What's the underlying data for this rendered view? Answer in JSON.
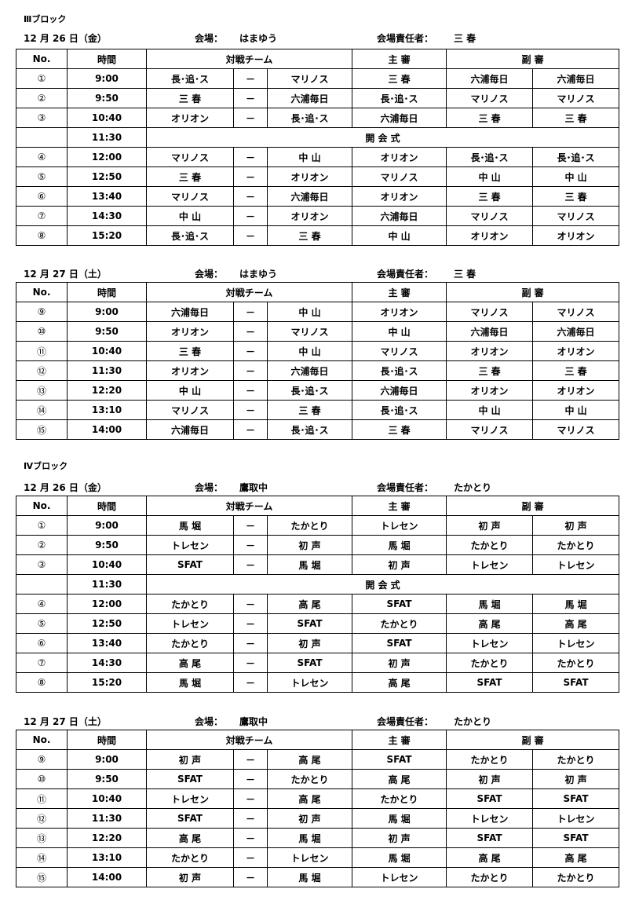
{
  "headers": {
    "no": "No.",
    "time": "時間",
    "teams": "対戦チーム",
    "main_ref": "主 審",
    "sub_ref": "副 審",
    "dash": "－"
  },
  "sections": [
    {
      "block": "Ⅲブロック",
      "date": "12 月 26 日（金）",
      "venue_label": "会場：",
      "venue": "はまゆう",
      "manager_label": "会場責任者：",
      "manager": "三 春",
      "rows": [
        [
          "①",
          "9:00",
          "長･追･ス",
          "マリノス",
          "三 春",
          "六浦毎日",
          "六浦毎日"
        ],
        [
          "②",
          "9:50",
          "三 春",
          "六浦毎日",
          "長･追･ス",
          "マリノス",
          "マリノス"
        ],
        [
          "③",
          "10:40",
          "オリオン",
          "長･追･ス",
          "六浦毎日",
          "三 春",
          "三 春"
        ],
        [
          "",
          "11:30",
          "開 会 式"
        ],
        [
          "④",
          "12:00",
          "マリノス",
          "中 山",
          "オリオン",
          "長･追･ス",
          "長･追･ス"
        ],
        [
          "⑤",
          "12:50",
          "三 春",
          "オリオン",
          "マリノス",
          "中 山",
          "中 山"
        ],
        [
          "⑥",
          "13:40",
          "マリノス",
          "六浦毎日",
          "オリオン",
          "三 春",
          "三 春"
        ],
        [
          "⑦",
          "14:30",
          "中 山",
          "オリオン",
          "六浦毎日",
          "マリノス",
          "マリノス"
        ],
        [
          "⑧",
          "15:20",
          "長･追･ス",
          "三 春",
          "中 山",
          "オリオン",
          "オリオン"
        ]
      ]
    },
    {
      "block": "",
      "date": "12 月 27 日（土）",
      "venue_label": "会場：",
      "venue": "はまゆう",
      "manager_label": "会場責任者：",
      "manager": "三 春",
      "rows": [
        [
          "⑨",
          "9:00",
          "六浦毎日",
          "中 山",
          "オリオン",
          "マリノス",
          "マリノス"
        ],
        [
          "⑩",
          "9:50",
          "オリオン",
          "マリノス",
          "中 山",
          "六浦毎日",
          "六浦毎日"
        ],
        [
          "⑪",
          "10:40",
          "三 春",
          "中 山",
          "マリノス",
          "オリオン",
          "オリオン"
        ],
        [
          "⑫",
          "11:30",
          "オリオン",
          "六浦毎日",
          "長･追･ス",
          "三 春",
          "三 春"
        ],
        [
          "⑬",
          "12:20",
          "中 山",
          "長･追･ス",
          "六浦毎日",
          "オリオン",
          "オリオン"
        ],
        [
          "⑭",
          "13:10",
          "マリノス",
          "三 春",
          "長･追･ス",
          "中 山",
          "中 山"
        ],
        [
          "⑮",
          "14:00",
          "六浦毎日",
          "長･追･ス",
          "三 春",
          "マリノス",
          "マリノス"
        ]
      ]
    },
    {
      "block": "Ⅳブロック",
      "date": "12 月 26 日（金）",
      "venue_label": "会場：",
      "venue": "鷹取中",
      "manager_label": "会場責任者：",
      "manager": "たかとり",
      "rows": [
        [
          "①",
          "9:00",
          "馬 堀",
          "たかとり",
          "トレセン",
          "初 声",
          "初 声"
        ],
        [
          "②",
          "9:50",
          "トレセン",
          "初 声",
          "馬 堀",
          "たかとり",
          "たかとり"
        ],
        [
          "③",
          "10:40",
          "SFAT",
          "馬 堀",
          "初 声",
          "トレセン",
          "トレセン"
        ],
        [
          "",
          "11:30",
          "開 会 式"
        ],
        [
          "④",
          "12:00",
          "たかとり",
          "高 尾",
          "SFAT",
          "馬 堀",
          "馬 堀"
        ],
        [
          "⑤",
          "12:50",
          "トレセン",
          "SFAT",
          "たかとり",
          "高 尾",
          "高 尾"
        ],
        [
          "⑥",
          "13:40",
          "たかとり",
          "初 声",
          "SFAT",
          "トレセン",
          "トレセン"
        ],
        [
          "⑦",
          "14:30",
          "高 尾",
          "SFAT",
          "初 声",
          "たかとり",
          "たかとり"
        ],
        [
          "⑧",
          "15:20",
          "馬 堀",
          "トレセン",
          "高 尾",
          "SFAT",
          "SFAT"
        ]
      ]
    },
    {
      "block": "",
      "date": "12 月 27 日（土）",
      "venue_label": "会場：",
      "venue": "鷹取中",
      "manager_label": "会場責任者：",
      "manager": "たかとり",
      "rows": [
        [
          "⑨",
          "9:00",
          "初 声",
          "高 尾",
          "SFAT",
          "たかとり",
          "たかとり"
        ],
        [
          "⑩",
          "9:50",
          "SFAT",
          "たかとり",
          "高 尾",
          "初 声",
          "初 声"
        ],
        [
          "⑪",
          "10:40",
          "トレセン",
          "高 尾",
          "たかとり",
          "SFAT",
          "SFAT"
        ],
        [
          "⑫",
          "11:30",
          "SFAT",
          "初 声",
          "馬 堀",
          "トレセン",
          "トレセン"
        ],
        [
          "⑬",
          "12:20",
          "高 尾",
          "馬 堀",
          "初 声",
          "SFAT",
          "SFAT"
        ],
        [
          "⑭",
          "13:10",
          "たかとり",
          "トレセン",
          "馬 堀",
          "高 尾",
          "高 尾"
        ],
        [
          "⑮",
          "14:00",
          "初 声",
          "馬 堀",
          "トレセン",
          "たかとり",
          "たかとり"
        ]
      ]
    }
  ]
}
